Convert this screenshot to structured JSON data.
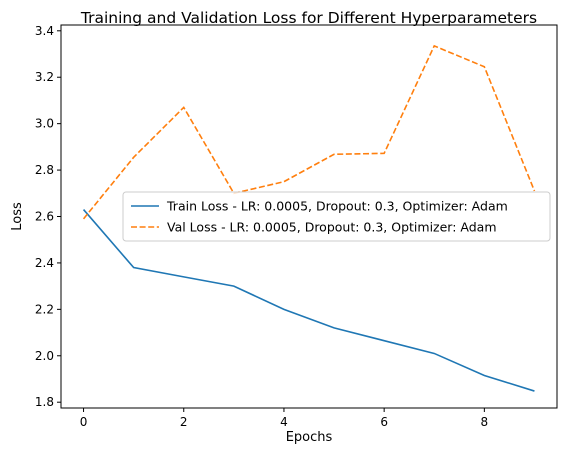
{
  "chart_data": {
    "type": "line",
    "title": "Training and Validation Loss for Different Hyperparameters",
    "xlabel": "Epochs",
    "ylabel": "Loss",
    "xlim": [
      -0.45,
      9.45
    ],
    "ylim": [
      1.775,
      3.425
    ],
    "xticks": [
      0,
      2,
      4,
      6,
      8
    ],
    "yticks": [
      1.8,
      2.0,
      2.2,
      2.4,
      2.6,
      2.8,
      3.0,
      3.2,
      3.4
    ],
    "ytick_labels": [
      "1.8",
      "2.0",
      "2.2",
      "2.4",
      "2.6",
      "2.8",
      "3.0",
      "3.2",
      "3.4"
    ],
    "grid": false,
    "legend_position": "center-right",
    "x": [
      0,
      1,
      2,
      3,
      4,
      5,
      6,
      7,
      8,
      9
    ],
    "series": [
      {
        "name": "Train Loss - LR: 0.0005, Dropout: 0.3, Optimizer: Adam",
        "values": [
          2.63,
          2.38,
          2.34,
          2.3,
          2.2,
          2.12,
          2.065,
          2.01,
          1.915,
          1.848
        ],
        "color": "#1f77b4",
        "dash": "solid"
      },
      {
        "name": "Val Loss - LR: 0.0005, Dropout: 0.3, Optimizer: Adam",
        "values": [
          2.59,
          2.855,
          3.07,
          2.7,
          2.75,
          2.868,
          2.872,
          3.335,
          3.245,
          2.71
        ],
        "color": "#ff7f0e",
        "dash": "dashed"
      }
    ]
  }
}
